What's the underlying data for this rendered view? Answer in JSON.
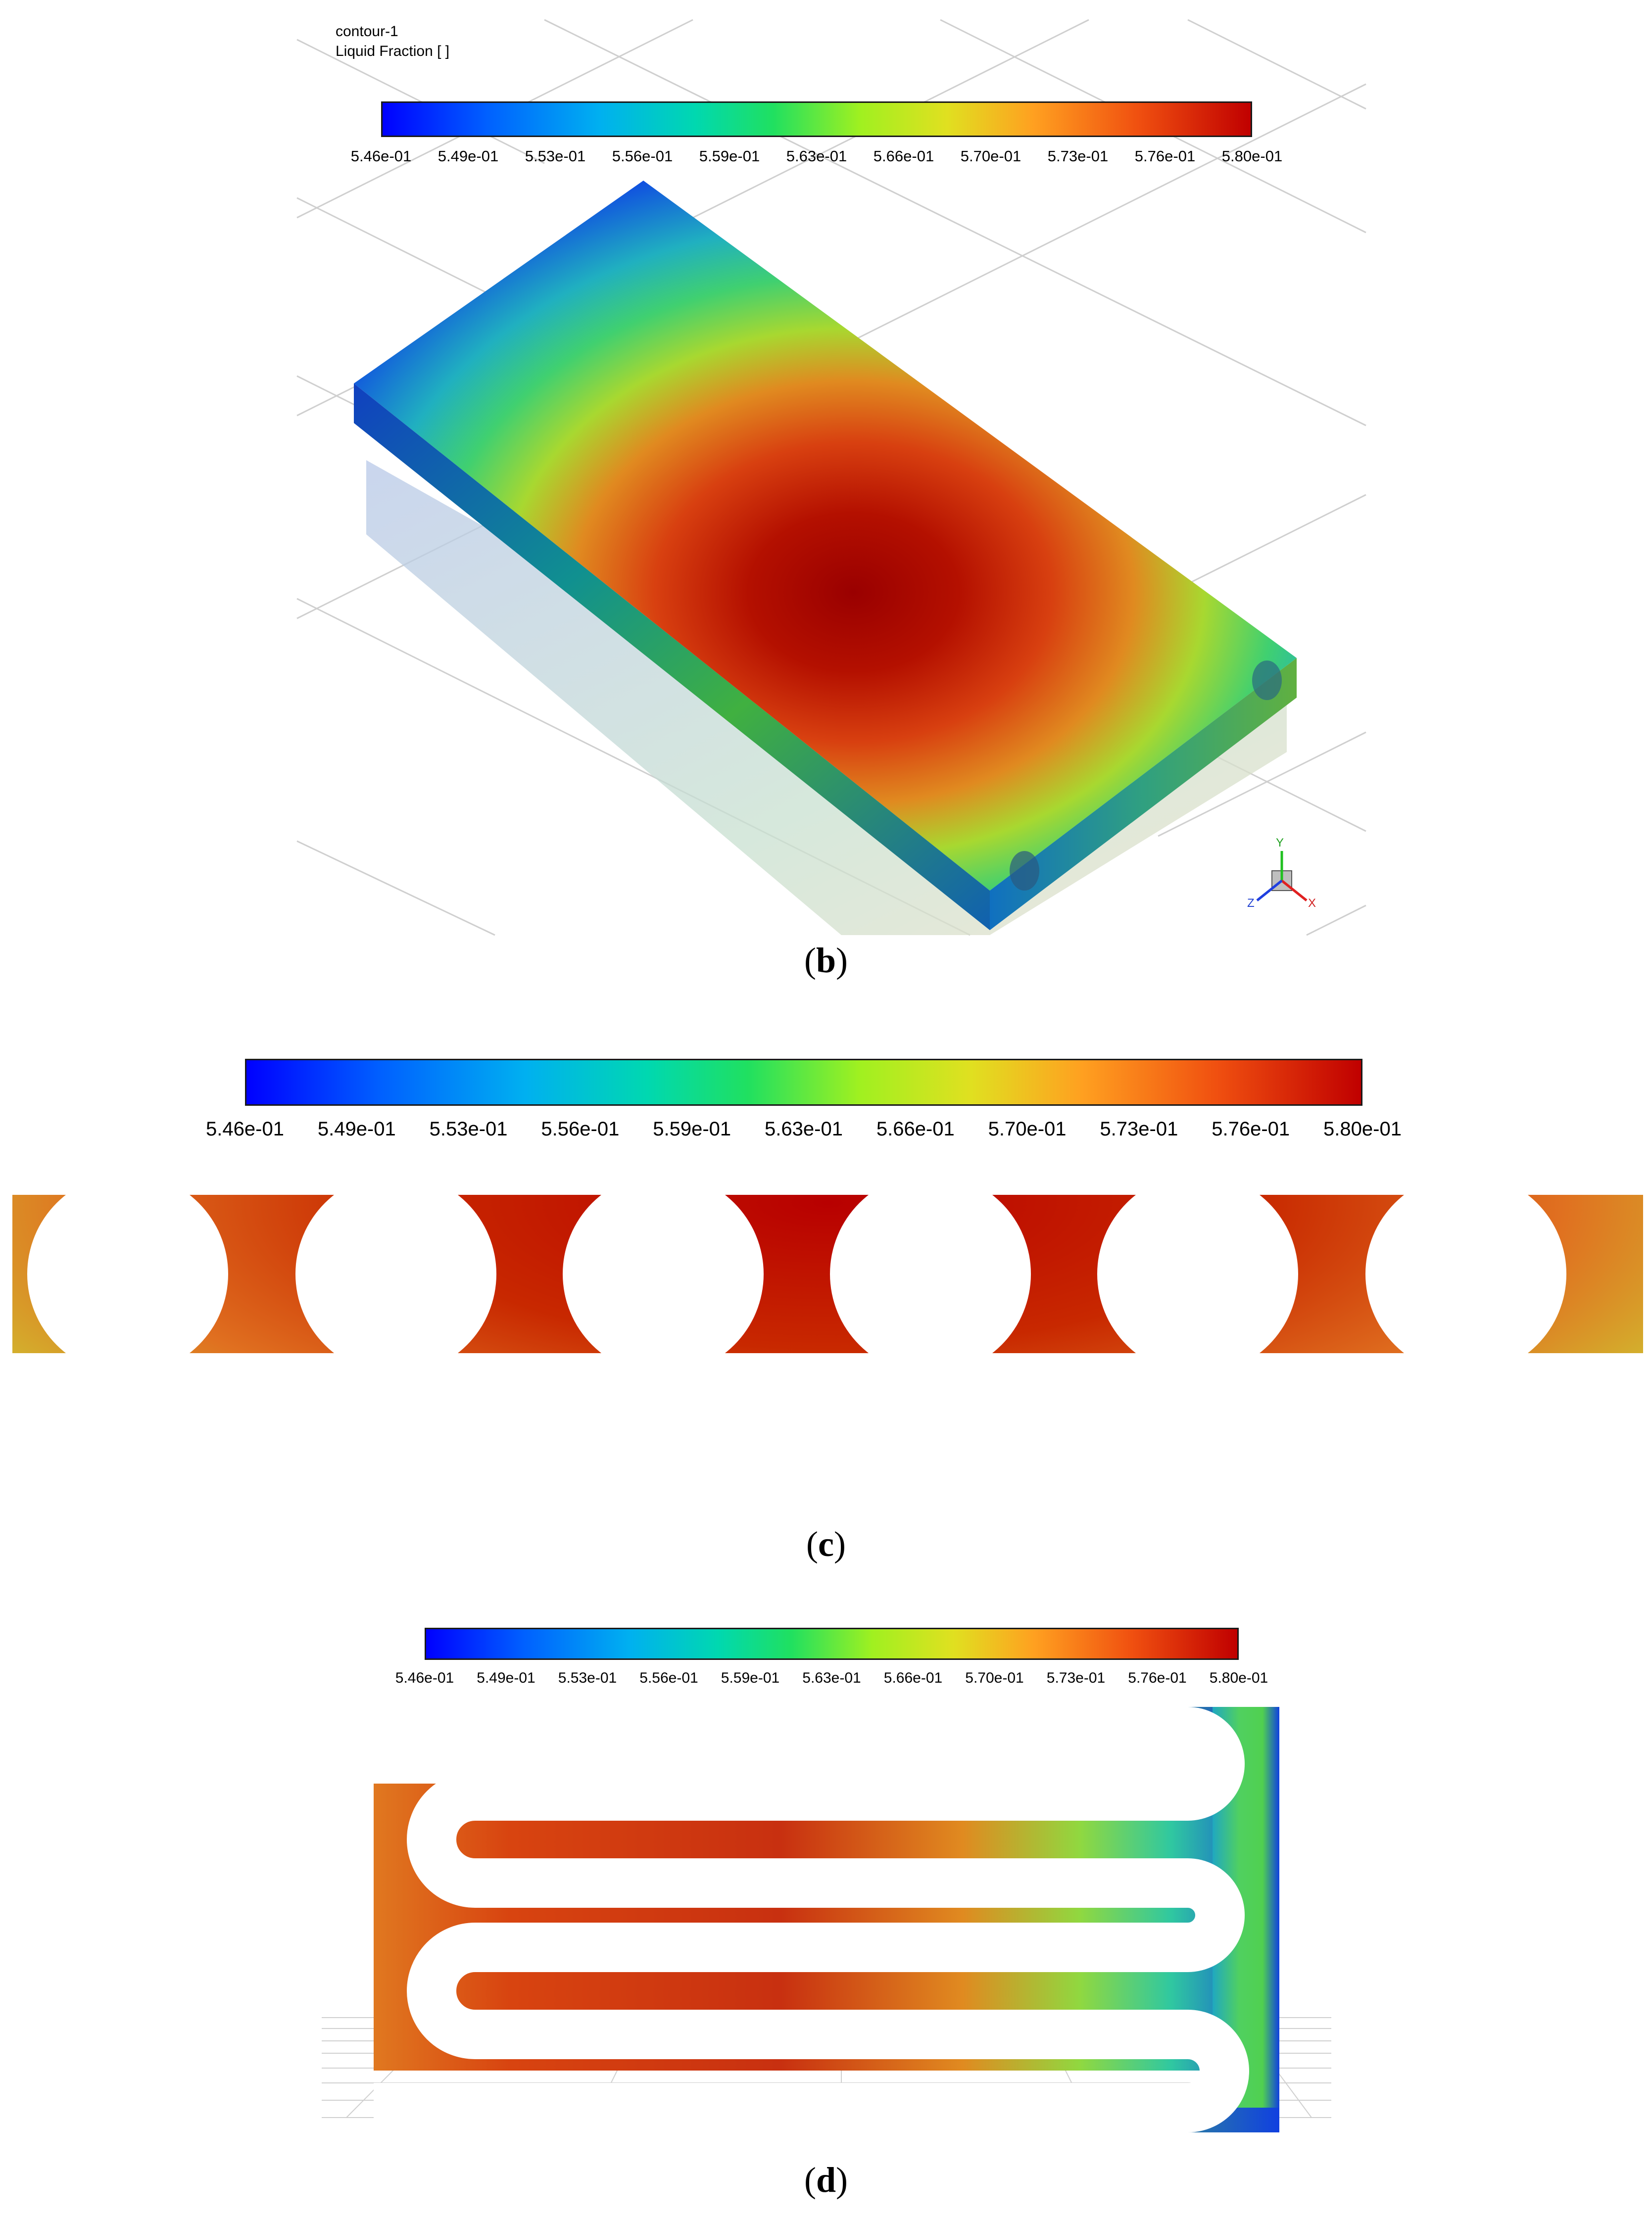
{
  "panel_b": {
    "legend_name": "contour-1",
    "legend_variable": "Liquid Fraction [ ]",
    "ticks": [
      "5.46e-01",
      "5.49e-01",
      "5.53e-01",
      "5.56e-01",
      "5.59e-01",
      "5.63e-01",
      "5.66e-01",
      "5.70e-01",
      "5.73e-01",
      "5.76e-01",
      "5.80e-01"
    ],
    "caption_letter": "b",
    "triad": {
      "x": "X",
      "y": "Y",
      "z": "Z"
    }
  },
  "panel_c": {
    "ticks": [
      "5.46e-01",
      "5.49e-01",
      "5.53e-01",
      "5.56e-01",
      "5.59e-01",
      "5.63e-01",
      "5.66e-01",
      "5.70e-01",
      "5.73e-01",
      "5.76e-01",
      "5.80e-01"
    ],
    "caption_letter": "c"
  },
  "panel_d": {
    "ticks": [
      "5.46e-01",
      "5.49e-01",
      "5.53e-01",
      "5.56e-01",
      "5.59e-01",
      "5.63e-01",
      "5.66e-01",
      "5.70e-01",
      "5.73e-01",
      "5.76e-01",
      "5.80e-01"
    ],
    "caption_letter": "d"
  },
  "colormap": [
    "#0000ff",
    "#0060ff",
    "#00b0f0",
    "#00d8b0",
    "#20e060",
    "#a0f020",
    "#e0e020",
    "#ffa020",
    "#f05010",
    "#c00000"
  ],
  "contour_range": [
    0.546,
    0.58
  ]
}
